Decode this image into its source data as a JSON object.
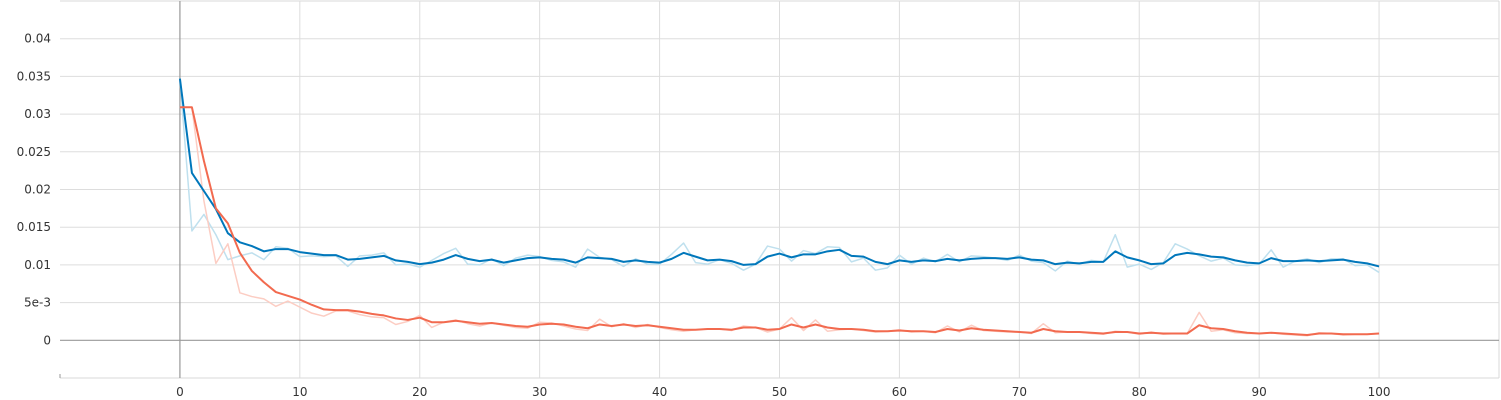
{
  "chart_data": {
    "type": "line",
    "title": "",
    "xlabel": "",
    "ylabel": "",
    "xlim": [
      -10,
      110
    ],
    "ylim": [
      -0.005,
      0.045
    ],
    "x_ticks": [
      0,
      10,
      20,
      30,
      40,
      50,
      60,
      70,
      80,
      90,
      100
    ],
    "x_tick_labels": [
      "0",
      "10",
      "20",
      "30",
      "40",
      "50",
      "60",
      "70",
      "80",
      "90",
      "100"
    ],
    "y_ticks": [
      0,
      0.005,
      0.01,
      0.015,
      0.02,
      0.025,
      0.03,
      0.035,
      0.04
    ],
    "y_tick_labels": [
      "0",
      "5e-3",
      "0.01",
      "0.015",
      "0.02",
      "0.025",
      "0.03",
      "0.035",
      "0.04"
    ],
    "grid": true,
    "series": [
      {
        "color": "#0077bb",
        "raw_color": "#bfe0ee",
        "x": [
          0,
          1,
          2,
          3,
          4,
          5,
          6,
          7,
          8,
          9,
          10,
          11,
          12,
          13,
          14,
          15,
          16,
          17,
          18,
          19,
          20,
          21,
          22,
          23,
          24,
          25,
          26,
          27,
          28,
          29,
          30,
          31,
          32,
          33,
          34,
          35,
          36,
          37,
          38,
          39,
          40,
          41,
          42,
          43,
          44,
          45,
          46,
          47,
          48,
          49,
          50,
          51,
          52,
          53,
          54,
          55,
          56,
          57,
          58,
          59,
          60,
          61,
          62,
          63,
          64,
          65,
          66,
          67,
          68,
          69,
          70,
          71,
          72,
          73,
          74,
          75,
          76,
          77,
          78,
          79,
          80,
          81,
          82,
          83,
          84,
          85,
          86,
          87,
          88,
          89,
          90,
          91,
          92,
          93,
          94,
          95,
          96,
          97,
          98,
          99,
          100
        ],
        "values": [
          0.0347,
          0.0222,
          0.0198,
          0.0174,
          0.0142,
          0.013,
          0.0125,
          0.0118,
          0.0121,
          0.0121,
          0.0117,
          0.0115,
          0.0113,
          0.0113,
          0.0107,
          0.0108,
          0.011,
          0.0112,
          0.0106,
          0.0104,
          0.0101,
          0.0103,
          0.0107,
          0.0113,
          0.0108,
          0.0105,
          0.0107,
          0.0103,
          0.0106,
          0.0109,
          0.011,
          0.0108,
          0.0107,
          0.0103,
          0.011,
          0.0109,
          0.0108,
          0.0104,
          0.0106,
          0.0104,
          0.0103,
          0.0108,
          0.0116,
          0.0111,
          0.0106,
          0.0107,
          0.0105,
          0.01,
          0.0101,
          0.0111,
          0.0115,
          0.011,
          0.0114,
          0.0114,
          0.0118,
          0.012,
          0.0112,
          0.0111,
          0.0104,
          0.0101,
          0.0106,
          0.0104,
          0.0106,
          0.0105,
          0.0108,
          0.0106,
          0.0108,
          0.0109,
          0.0109,
          0.0108,
          0.011,
          0.0107,
          0.0106,
          0.0101,
          0.0103,
          0.0102,
          0.0104,
          0.0104,
          0.0118,
          0.011,
          0.0106,
          0.0101,
          0.0102,
          0.0113,
          0.0116,
          0.0114,
          0.0111,
          0.011,
          0.0106,
          0.0103,
          0.0102,
          0.0109,
          0.0105,
          0.0105,
          0.0106,
          0.0105,
          0.0106,
          0.0107,
          0.0104,
          0.0102,
          0.0098
        ],
        "raw_values": [
          0.0347,
          0.0145,
          0.0167,
          0.014,
          0.0107,
          0.0112,
          0.0116,
          0.0107,
          0.0124,
          0.0122,
          0.0111,
          0.0112,
          0.0111,
          0.0112,
          0.0098,
          0.0112,
          0.0113,
          0.0116,
          0.01,
          0.0101,
          0.0097,
          0.0106,
          0.0115,
          0.0122,
          0.0101,
          0.01,
          0.0108,
          0.0099,
          0.0109,
          0.0113,
          0.0111,
          0.0106,
          0.0104,
          0.0097,
          0.0121,
          0.011,
          0.0107,
          0.0098,
          0.0108,
          0.0101,
          0.0101,
          0.0114,
          0.0129,
          0.0103,
          0.0101,
          0.0107,
          0.0102,
          0.0093,
          0.0101,
          0.0125,
          0.0121,
          0.0105,
          0.0119,
          0.0115,
          0.0124,
          0.0123,
          0.0104,
          0.0109,
          0.0093,
          0.0096,
          0.0113,
          0.0101,
          0.0109,
          0.0104,
          0.0114,
          0.0104,
          0.0112,
          0.0111,
          0.0109,
          0.0106,
          0.0113,
          0.0105,
          0.0103,
          0.0092,
          0.0105,
          0.0101,
          0.0106,
          0.0104,
          0.014,
          0.0097,
          0.0101,
          0.0094,
          0.0103,
          0.0128,
          0.0121,
          0.0112,
          0.0105,
          0.0109,
          0.01,
          0.0099,
          0.0101,
          0.012,
          0.0097,
          0.0105,
          0.0108,
          0.0103,
          0.0108,
          0.0108,
          0.0099,
          0.01,
          0.009
        ]
      },
      {
        "color": "#f26a4f",
        "raw_color": "#fccdc3",
        "x": [
          0,
          1,
          2,
          3,
          4,
          5,
          6,
          7,
          8,
          9,
          10,
          11,
          12,
          13,
          14,
          15,
          16,
          17,
          18,
          19,
          20,
          21,
          22,
          23,
          24,
          25,
          26,
          27,
          28,
          29,
          30,
          31,
          32,
          33,
          34,
          35,
          36,
          37,
          38,
          39,
          40,
          41,
          42,
          43,
          44,
          45,
          46,
          47,
          48,
          49,
          50,
          51,
          52,
          53,
          54,
          55,
          56,
          57,
          58,
          59,
          60,
          61,
          62,
          63,
          64,
          65,
          66,
          67,
          68,
          69,
          70,
          71,
          72,
          73,
          74,
          75,
          76,
          77,
          78,
          79,
          80,
          81,
          82,
          83,
          84,
          85,
          86,
          87,
          88,
          89,
          90,
          91,
          92,
          93,
          94,
          95,
          96,
          97,
          98,
          99,
          100
        ],
        "values": [
          0.0309,
          0.0309,
          0.0238,
          0.0175,
          0.0155,
          0.0116,
          0.0092,
          0.0077,
          0.0064,
          0.0059,
          0.0054,
          0.0047,
          0.0041,
          0.004,
          0.004,
          0.0038,
          0.0035,
          0.0033,
          0.0029,
          0.0027,
          0.003,
          0.0024,
          0.0024,
          0.0026,
          0.0024,
          0.0022,
          0.0023,
          0.0021,
          0.0019,
          0.0018,
          0.0021,
          0.0022,
          0.0021,
          0.0018,
          0.0016,
          0.0021,
          0.0019,
          0.0021,
          0.0019,
          0.002,
          0.0018,
          0.0016,
          0.0014,
          0.0014,
          0.0015,
          0.0015,
          0.0014,
          0.0017,
          0.0017,
          0.0014,
          0.0015,
          0.0021,
          0.0017,
          0.0021,
          0.0017,
          0.0015,
          0.0015,
          0.0014,
          0.0012,
          0.0012,
          0.0013,
          0.0012,
          0.0012,
          0.0011,
          0.0015,
          0.0013,
          0.0016,
          0.0014,
          0.0013,
          0.0012,
          0.0011,
          0.001,
          0.0015,
          0.0012,
          0.0011,
          0.0011,
          0.001,
          0.0009,
          0.0011,
          0.0011,
          0.0009,
          0.001,
          0.0009,
          0.0009,
          0.0009,
          0.002,
          0.0016,
          0.0015,
          0.0012,
          0.001,
          0.0009,
          0.001,
          0.0009,
          0.0008,
          0.0007,
          0.0009,
          0.0009,
          0.0008,
          0.0008,
          0.0008,
          0.0009
        ],
        "raw_values": [
          0.0309,
          0.0309,
          0.0185,
          0.0102,
          0.0128,
          0.0063,
          0.0058,
          0.0055,
          0.0045,
          0.0052,
          0.0044,
          0.0036,
          0.0032,
          0.0039,
          0.0039,
          0.0034,
          0.0031,
          0.003,
          0.0021,
          0.0025,
          0.0033,
          0.0017,
          0.0024,
          0.0027,
          0.0022,
          0.0019,
          0.0023,
          0.002,
          0.0017,
          0.0016,
          0.0024,
          0.0023,
          0.0019,
          0.0015,
          0.0013,
          0.0028,
          0.0018,
          0.0022,
          0.0017,
          0.0021,
          0.0017,
          0.0014,
          0.0012,
          0.0014,
          0.0015,
          0.0015,
          0.0013,
          0.0019,
          0.0017,
          0.0011,
          0.0015,
          0.003,
          0.0013,
          0.0027,
          0.0012,
          0.0014,
          0.0015,
          0.0013,
          0.0011,
          0.0012,
          0.0014,
          0.0011,
          0.0012,
          0.001,
          0.0019,
          0.0011,
          0.002,
          0.0013,
          0.0012,
          0.0011,
          0.0011,
          0.0009,
          0.0022,
          0.001,
          0.0011,
          0.0011,
          0.0009,
          0.0008,
          0.0012,
          0.0011,
          0.0008,
          0.0011,
          0.0008,
          0.0009,
          0.0009,
          0.0037,
          0.0012,
          0.0014,
          0.001,
          0.0009,
          0.0009,
          0.001,
          0.0008,
          0.0007,
          0.0006,
          0.001,
          0.0009,
          0.0007,
          0.0008,
          0.0008,
          0.0009
        ]
      }
    ]
  }
}
